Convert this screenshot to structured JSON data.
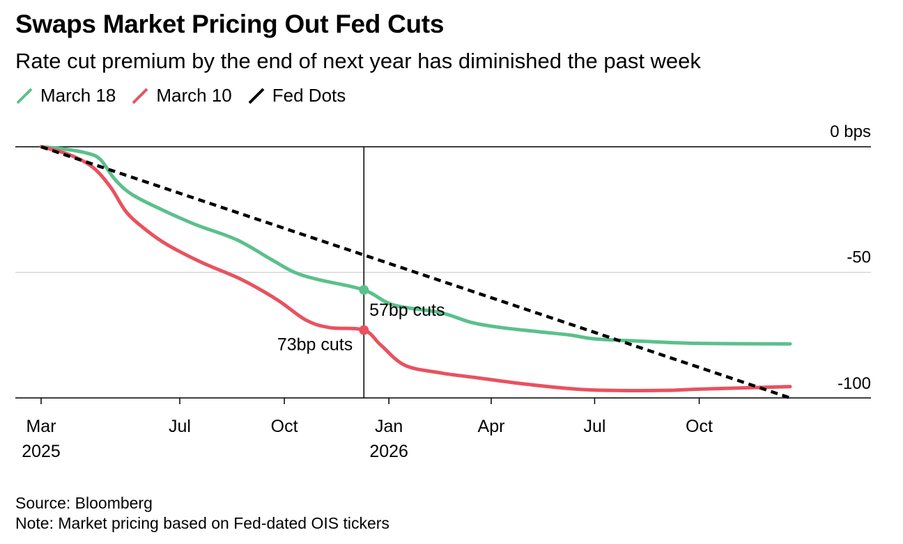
{
  "title": "Swaps Market Pricing Out Fed Cuts",
  "subtitle": "Rate cut premium by the end of next year has diminished the past week",
  "source": "Source: Bloomberg",
  "note": "Note: Market pricing based on Fed-dated OIS tickers",
  "colors": {
    "march18": "#5bc08c",
    "march10": "#e8525f",
    "fed_dots": "#000000",
    "grid": "#d0d0d0",
    "axis": "#000000"
  },
  "chart_data": {
    "type": "line",
    "y_unit_label": "0 bps",
    "ylim": [
      -100,
      0
    ],
    "y_ticks": [
      {
        "value": 0,
        "label": "0 bps"
      },
      {
        "value": -50,
        "label": "-50"
      },
      {
        "value": -100,
        "label": "-100"
      }
    ],
    "x_range": [
      "2025-03-01",
      "2026-12-20"
    ],
    "x_ticks": [
      {
        "date": "2025-03-01",
        "label": "Mar",
        "year": "2025"
      },
      {
        "date": "2025-07-01",
        "label": "Jul",
        "year": ""
      },
      {
        "date": "2025-10-01",
        "label": "Oct",
        "year": ""
      },
      {
        "date": "2026-01-01",
        "label": "Jan",
        "year": "2026"
      },
      {
        "date": "2026-04-01",
        "label": "Apr",
        "year": ""
      },
      {
        "date": "2026-07-01",
        "label": "Jul",
        "year": ""
      },
      {
        "date": "2026-10-01",
        "label": "Oct",
        "year": ""
      }
    ],
    "reference_line": {
      "date": "2025-12-10"
    },
    "series": [
      {
        "name": "March 18",
        "key": "march18",
        "points": [
          [
            "2025-03-01",
            0
          ],
          [
            "2025-03-20",
            -0.8
          ],
          [
            "2025-04-10",
            -2.5
          ],
          [
            "2025-04-22",
            -5
          ],
          [
            "2025-05-05",
            -13
          ],
          [
            "2025-05-20",
            -19
          ],
          [
            "2025-06-15",
            -25
          ],
          [
            "2025-07-15",
            -31
          ],
          [
            "2025-08-20",
            -37
          ],
          [
            "2025-09-20",
            -45
          ],
          [
            "2025-10-10",
            -50
          ],
          [
            "2025-11-01",
            -53
          ],
          [
            "2025-12-10",
            -57
          ],
          [
            "2026-01-05",
            -63
          ],
          [
            "2026-02-15",
            -66
          ],
          [
            "2026-03-15",
            -70
          ],
          [
            "2026-04-10",
            -72
          ],
          [
            "2026-05-10",
            -73.5
          ],
          [
            "2026-06-10",
            -75
          ],
          [
            "2026-07-01",
            -76.5
          ],
          [
            "2026-08-15",
            -77.5
          ],
          [
            "2026-10-01",
            -78.3
          ],
          [
            "2026-12-20",
            -78.5
          ]
        ]
      },
      {
        "name": "March 10",
        "key": "march10",
        "points": [
          [
            "2025-03-01",
            0
          ],
          [
            "2025-03-25",
            -3
          ],
          [
            "2025-04-15",
            -8
          ],
          [
            "2025-05-01",
            -16
          ],
          [
            "2025-05-15",
            -26
          ],
          [
            "2025-06-01",
            -33
          ],
          [
            "2025-06-20",
            -39
          ],
          [
            "2025-07-20",
            -46
          ],
          [
            "2025-08-25",
            -53
          ],
          [
            "2025-09-25",
            -61
          ],
          [
            "2025-10-20",
            -69
          ],
          [
            "2025-11-10",
            -72
          ],
          [
            "2025-12-10",
            -73
          ],
          [
            "2025-12-25",
            -79
          ],
          [
            "2026-01-15",
            -87
          ],
          [
            "2026-02-15",
            -90
          ],
          [
            "2026-03-20",
            -92
          ],
          [
            "2026-05-01",
            -94.5
          ],
          [
            "2026-06-15",
            -96.5
          ],
          [
            "2026-07-15",
            -97
          ],
          [
            "2026-09-01",
            -97
          ],
          [
            "2026-10-01",
            -96.5
          ],
          [
            "2026-12-20",
            -95.5
          ]
        ]
      },
      {
        "name": "Fed Dots",
        "key": "fed_dots",
        "dashed": true,
        "points": [
          [
            "2025-03-01",
            0
          ],
          [
            "2026-12-20",
            -100
          ]
        ]
      }
    ],
    "annotations": [
      {
        "text": "57bp cuts",
        "date": "2025-12-10",
        "value": -57,
        "series": "march18"
      },
      {
        "text": "73bp cuts",
        "date": "2025-12-10",
        "value": -73,
        "series": "march10"
      }
    ]
  }
}
